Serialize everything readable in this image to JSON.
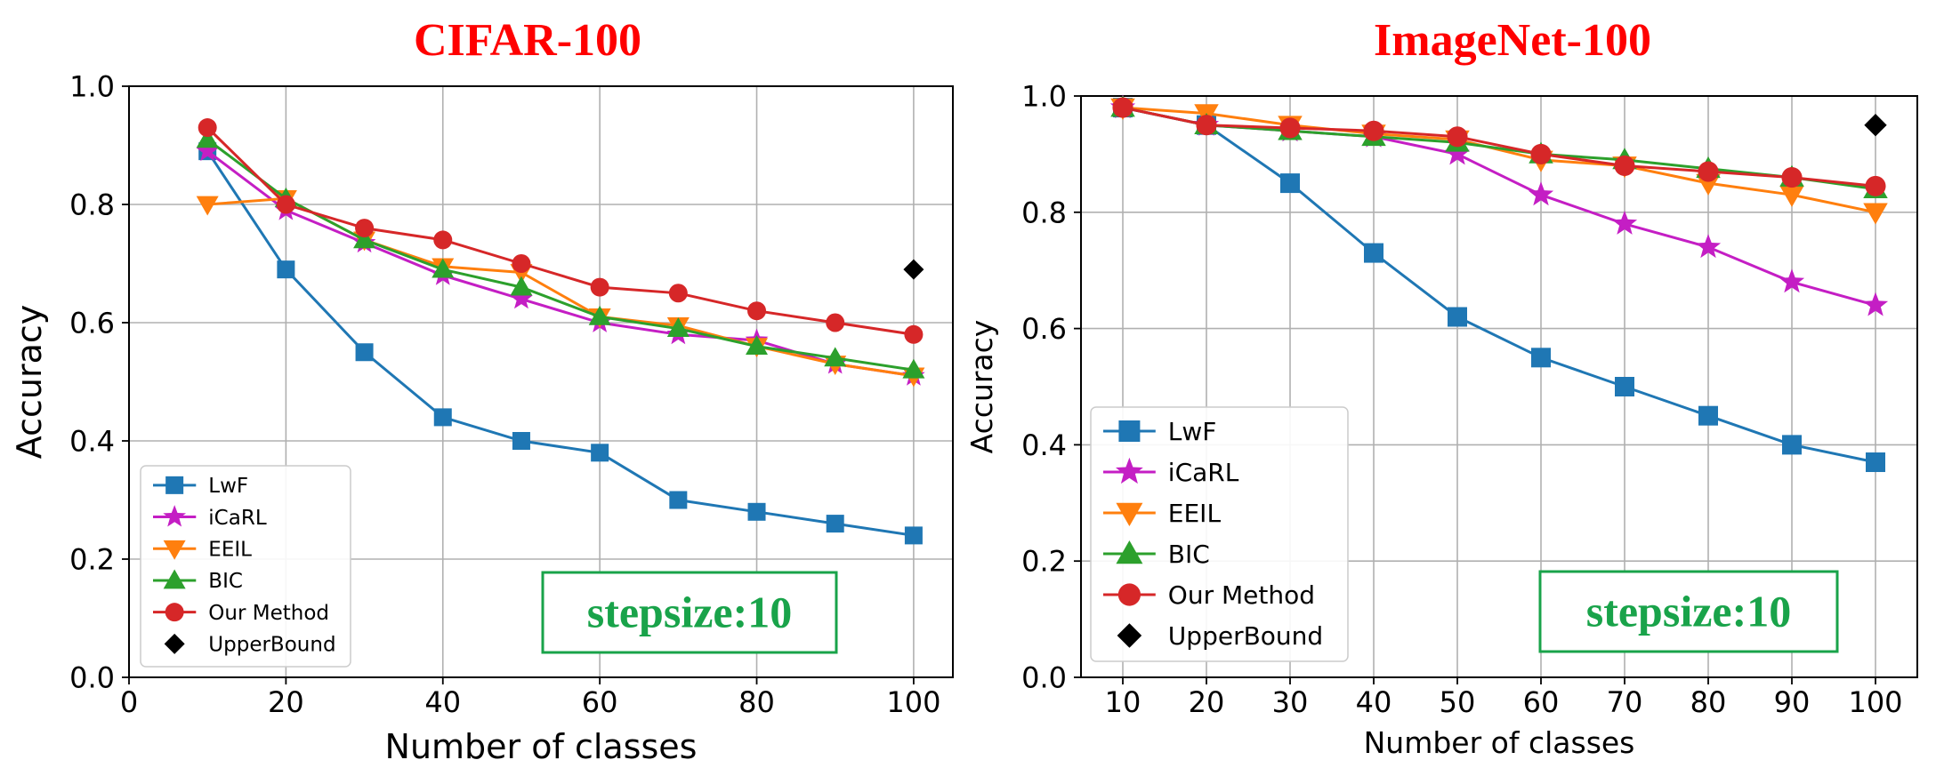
{
  "chart_data": [
    {
      "type": "line",
      "title": "CIFAR-100",
      "xlabel": "Number of classes",
      "ylabel": "Accuracy",
      "xlim": [
        0,
        105
      ],
      "ylim": [
        0.0,
        1.0
      ],
      "xticks": [
        "0",
        "20",
        "40",
        "60",
        "80",
        "100"
      ],
      "yticks": [
        "0.0",
        "0.2",
        "0.4",
        "0.6",
        "0.8",
        "1.0"
      ],
      "grid": true,
      "legend_position": "lower-left",
      "annotation": "stepsize:10",
      "x": [
        10,
        20,
        30,
        40,
        50,
        60,
        70,
        80,
        90,
        100
      ],
      "series": [
        {
          "name": "LwF",
          "marker": "square",
          "color": "#1f77b4",
          "values": [
            0.89,
            0.69,
            0.55,
            0.44,
            0.4,
            0.38,
            0.3,
            0.28,
            0.26,
            0.24
          ]
        },
        {
          "name": "iCaRL",
          "marker": "star",
          "color": "#c41ec4",
          "values": [
            0.89,
            0.79,
            0.735,
            0.68,
            0.64,
            0.6,
            0.58,
            0.57,
            0.53,
            0.51
          ]
        },
        {
          "name": "EEIL",
          "marker": "triangle-down",
          "color": "#ff7f0e",
          "values": [
            0.8,
            0.81,
            0.74,
            0.695,
            0.685,
            0.61,
            0.595,
            0.56,
            0.53,
            0.51
          ]
        },
        {
          "name": "BIC",
          "marker": "triangle-up",
          "color": "#2ca02c",
          "values": [
            0.91,
            0.81,
            0.74,
            0.69,
            0.66,
            0.61,
            0.59,
            0.56,
            0.54,
            0.52
          ]
        },
        {
          "name": "Our Method",
          "marker": "circle",
          "color": "#d62728",
          "values": [
            0.93,
            0.8,
            0.76,
            0.74,
            0.7,
            0.66,
            0.65,
            0.62,
            0.6,
            0.58
          ]
        },
        {
          "name": "UpperBound",
          "marker": "diamond",
          "color": "#000000",
          "values": [
            null,
            null,
            null,
            null,
            null,
            null,
            null,
            null,
            null,
            0.69
          ],
          "line": false
        }
      ]
    },
    {
      "type": "line",
      "title": "ImageNet-100",
      "xlabel": "Number of classes",
      "ylabel": "Accuracy",
      "xlim": [
        5,
        105
      ],
      "ylim": [
        0.0,
        1.0
      ],
      "xticks": [
        "10",
        "20",
        "30",
        "40",
        "50",
        "60",
        "70",
        "80",
        "90",
        "100"
      ],
      "yticks": [
        "0.0",
        "0.2",
        "0.4",
        "0.6",
        "0.8",
        "1.0"
      ],
      "grid": true,
      "legend_position": "lower-left",
      "annotation": "stepsize:10",
      "x": [
        10,
        20,
        30,
        40,
        50,
        60,
        70,
        80,
        90,
        100
      ],
      "series": [
        {
          "name": "LwF",
          "marker": "square",
          "color": "#1f77b4",
          "values": [
            0.98,
            0.95,
            0.85,
            0.73,
            0.62,
            0.55,
            0.5,
            0.45,
            0.4,
            0.37
          ]
        },
        {
          "name": "iCaRL",
          "marker": "star",
          "color": "#c41ec4",
          "values": [
            0.98,
            0.95,
            0.94,
            0.93,
            0.9,
            0.83,
            0.78,
            0.74,
            0.68,
            0.64
          ]
        },
        {
          "name": "EEIL",
          "marker": "triangle-down",
          "color": "#ff7f0e",
          "values": [
            0.98,
            0.97,
            0.95,
            0.935,
            0.925,
            0.89,
            0.88,
            0.85,
            0.83,
            0.8
          ]
        },
        {
          "name": "BIC",
          "marker": "triangle-up",
          "color": "#2ca02c",
          "values": [
            0.98,
            0.95,
            0.94,
            0.93,
            0.92,
            0.9,
            0.89,
            0.875,
            0.86,
            0.84
          ]
        },
        {
          "name": "Our Method",
          "marker": "circle",
          "color": "#d62728",
          "values": [
            0.98,
            0.95,
            0.945,
            0.94,
            0.93,
            0.9,
            0.88,
            0.87,
            0.86,
            0.845
          ]
        },
        {
          "name": "UpperBound",
          "marker": "diamond",
          "color": "#000000",
          "values": [
            null,
            null,
            null,
            null,
            null,
            null,
            null,
            null,
            null,
            0.95
          ],
          "line": false
        }
      ]
    }
  ],
  "style": {
    "title_color": "#ff0000",
    "annotation_color": "#19a34a",
    "grid_color": "#b0b0b0"
  }
}
